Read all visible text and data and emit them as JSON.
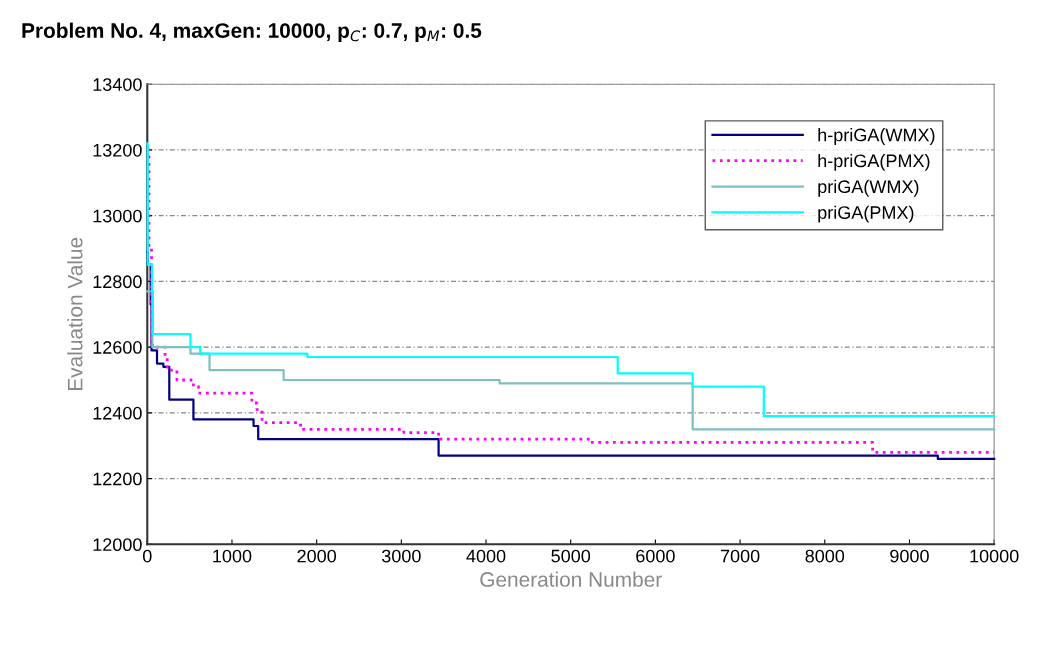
{
  "chart_data": {
    "type": "step",
    "title": "Problem No. 4, maxGen: 10000, p$_{C}$: 0.7, p$_{M}$: 0.5",
    "xlabel": "Generation Number",
    "ylabel": "Evaluation Value",
    "xlim": [
      0,
      10000
    ],
    "xticks": [
      0,
      1000,
      2000,
      3000,
      4000,
      5000,
      6000,
      7000,
      8000,
      9000,
      10000
    ],
    "ylim": [
      12000,
      13400
    ],
    "yticks": [
      12000,
      12200,
      12400,
      12600,
      12800,
      13000,
      13200,
      13400
    ],
    "grid": "y",
    "legend": "top right",
    "series": [
      {
        "name": "h-priGA(WMX)",
        "color": "#000080",
        "line_style": "solid",
        "x": [
          0,
          5,
          40,
          50,
          115,
          190,
          260,
          545,
          1255,
          1310,
          3440,
          9335,
          10000
        ],
        "values": [
          12890,
          12850,
          12730,
          12590,
          12550,
          12540,
          12440,
          12380,
          12360,
          12320,
          12270,
          12260,
          12260
        ]
      },
      {
        "name": "h-priGA(PMX)",
        "color": "#ff00ff",
        "line_style": "dotted",
        "x": [
          0,
          20,
          50,
          60,
          210,
          235,
          350,
          545,
          605,
          820,
          1235,
          1295,
          1355,
          1810,
          3030,
          3440,
          5235,
          8565,
          10000
        ],
        "values": [
          13200,
          12900,
          12620,
          12600,
          12570,
          12530,
          12500,
          12480,
          12460,
          12460,
          12430,
          12410,
          12370,
          12350,
          12340,
          12320,
          12310,
          12280,
          12280
        ]
      },
      {
        "name": "priGA(WMX)",
        "color": "#7fbfbf",
        "line_style": "solid",
        "x": [
          0,
          60,
          510,
          735,
          1610,
          4160,
          6440,
          10000
        ],
        "values": [
          12770,
          12600,
          12580,
          12530,
          12500,
          12490,
          12350,
          12350
        ]
      },
      {
        "name": "priGA(PMX)",
        "color": "#00ffff",
        "line_style": "solid",
        "x": [
          0,
          5,
          55,
          65,
          510,
          625,
          1890,
          5555,
          6440,
          7280,
          10000
        ],
        "values": [
          13220,
          12850,
          12770,
          12640,
          12600,
          12580,
          12570,
          12520,
          12480,
          12390,
          12390
        ]
      }
    ]
  }
}
